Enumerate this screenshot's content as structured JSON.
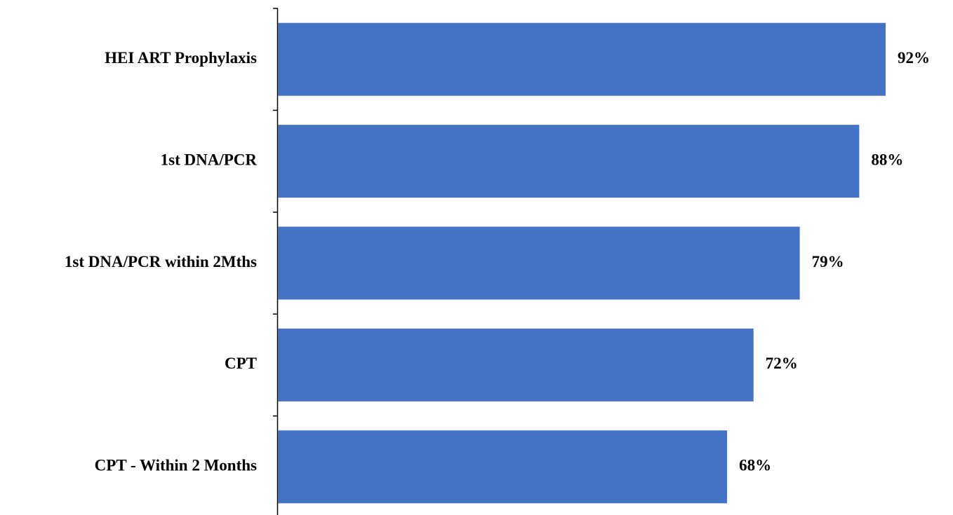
{
  "chart_data": {
    "type": "bar",
    "orientation": "horizontal",
    "categories": [
      "HEI ART Prophylaxis",
      "1st DNA/PCR",
      "1st DNA/PCR within 2Mths",
      "CPT",
      "CPT - Within 2 Months"
    ],
    "values": [
      92,
      88,
      79,
      72,
      68
    ],
    "value_labels": [
      "92%",
      "88%",
      "79%",
      "72%",
      "68%"
    ],
    "unit": "%",
    "xlim": [
      0,
      100
    ],
    "grid": false,
    "legend": "none",
    "bar_color": "#4472C4"
  }
}
